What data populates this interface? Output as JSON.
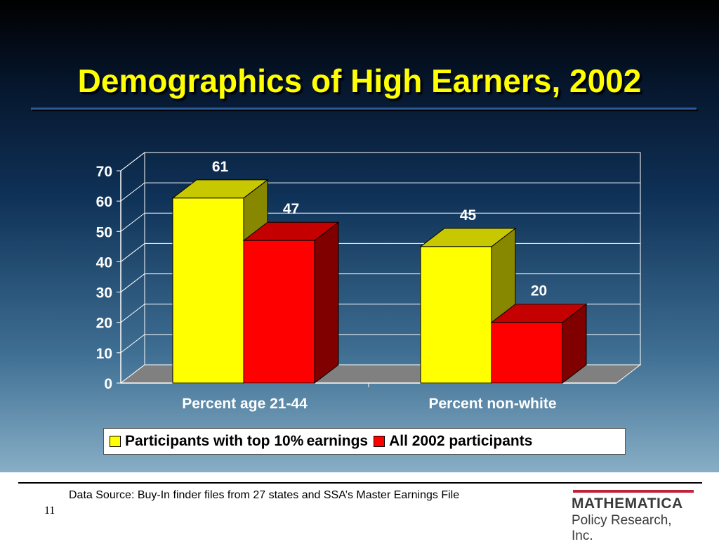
{
  "slide": {
    "title": "Demographics of High Earners, 2002",
    "source": "Data Source:  Buy-In finder files from 27 states and SSA’s Master Earnings File",
    "page_number": "11",
    "logo_top": "MATHEMATICA",
    "logo_bottom": "Policy Research, Inc."
  },
  "chart_data": {
    "type": "bar",
    "categories": [
      "Percent age 21-44",
      "Percent non-white"
    ],
    "series": [
      {
        "name": "Participants with top 10% earnings",
        "values": [
          61,
          45
        ],
        "color": "#ffff00"
      },
      {
        "name": "All 2002 participants",
        "values": [
          47,
          20
        ],
        "color": "#ff0000"
      }
    ],
    "data_labels": [
      [
        "61",
        "45"
      ],
      [
        "47",
        "20"
      ]
    ],
    "ylim": [
      0,
      70
    ],
    "yticks": [
      "0",
      "10",
      "20",
      "30",
      "40",
      "50",
      "60",
      "70"
    ],
    "grid": true,
    "legend": "bottom",
    "three_d": true
  }
}
